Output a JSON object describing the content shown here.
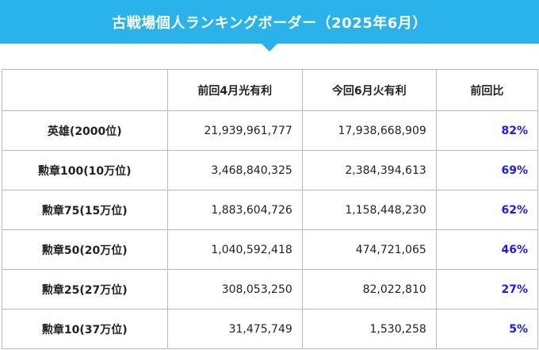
{
  "title": "古戦場個人ランキングボーダー（2025年6月）",
  "colors": {
    "banner": "#29b3ea",
    "ratio_text": "#1a1aff",
    "border": "#b9b9b9"
  },
  "table": {
    "headers": [
      "",
      "前回4月光有利",
      "今回6月火有利",
      "前回比"
    ],
    "rows": [
      {
        "label": "英雄(2000位)",
        "prev": "21,939,961,777",
        "curr": "17,938,668,909",
        "ratio": "82%"
      },
      {
        "label": "勲章100(10万位)",
        "prev": "3,468,840,325",
        "curr": "2,384,394,613",
        "ratio": "69%"
      },
      {
        "label": "勲章75(15万位)",
        "prev": "1,883,604,726",
        "curr": "1,158,448,230",
        "ratio": "62%"
      },
      {
        "label": "勲章50(20万位)",
        "prev": "1,040,592,418",
        "curr": "474,721,065",
        "ratio": "46%"
      },
      {
        "label": "勲章25(27万位)",
        "prev": "308,053,250",
        "curr": "82,022,810",
        "ratio": "27%"
      },
      {
        "label": "勲章10(37万位)",
        "prev": "31,475,749",
        "curr": "1,530,258",
        "ratio": "5%"
      }
    ]
  }
}
